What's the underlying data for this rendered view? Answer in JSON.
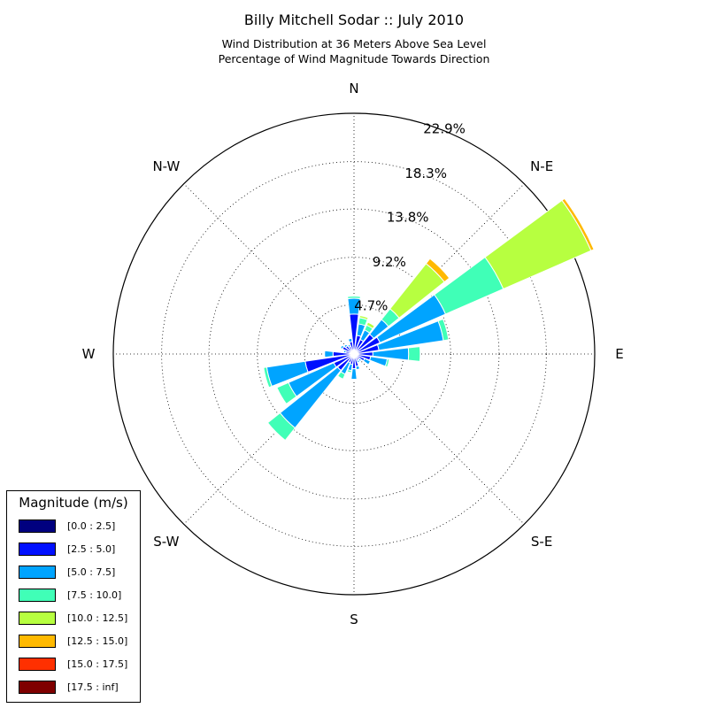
{
  "chart_data": {
    "type": "windrose",
    "title": "Billy Mitchell Sodar :: July 2010",
    "subtitle_lines": [
      "Wind Distribution at 36 Meters Above Sea Level",
      "Percentage of Wind Magnitude Towards Direction"
    ],
    "rmax": 22.9,
    "radial_ticks": [
      4.7,
      9.2,
      13.8,
      18.3,
      22.9
    ],
    "radial_tick_labels": [
      "4.7%",
      "9.2%",
      "13.8%",
      "18.3%",
      "22.9%"
    ],
    "direction_labels": [
      {
        "label": "N",
        "angle": 0
      },
      {
        "label": "N-E",
        "angle": 45
      },
      {
        "label": "E",
        "angle": 90
      },
      {
        "label": "S-E",
        "angle": 135
      },
      {
        "label": "S",
        "angle": 180
      },
      {
        "label": "S-W",
        "angle": 225
      },
      {
        "label": "W",
        "angle": 270
      },
      {
        "label": "N-W",
        "angle": 315
      }
    ],
    "legend_title": "Magnitude (m/s)",
    "bins": [
      {
        "label": "[0.0 : 2.5]",
        "color": "#00007f"
      },
      {
        "label": "[2.5 : 5.0]",
        "color": "#0010ff"
      },
      {
        "label": "[5.0 : 7.5]",
        "color": "#00a4ff"
      },
      {
        "label": "[7.5 : 10.0]",
        "color": "#40ffb7"
      },
      {
        "label": "[10.0 : 12.5]",
        "color": "#b7ff40"
      },
      {
        "label": "[12.5 : 15.0]",
        "color": "#ffb900"
      },
      {
        "label": "[15.0 : 17.5]",
        "color": "#ff3000"
      },
      {
        "label": "[17.5 : inf]",
        "color": "#7f0000"
      }
    ],
    "sector_width_deg": 15,
    "sectors": [
      {
        "direction": 0,
        "values": [
          0.2,
          3.6,
          1.5,
          0.2,
          0,
          0,
          0,
          0
        ]
      },
      {
        "direction": 15,
        "values": [
          0.2,
          1.6,
          1.1,
          0.6,
          0.2,
          0,
          0,
          0
        ]
      },
      {
        "direction": 30,
        "values": [
          0.2,
          1.3,
          1.0,
          0.5,
          0.3,
          0,
          0,
          0
        ]
      },
      {
        "direction": 45,
        "values": [
          0.2,
          2.2,
          1.8,
          1.3,
          5.5,
          0.6,
          0,
          0
        ]
      },
      {
        "direction": 60,
        "values": [
          0.2,
          2.5,
          6.8,
          6.0,
          9.1,
          0.3,
          0,
          0
        ]
      },
      {
        "direction": 75,
        "values": [
          0.2,
          2.2,
          6.2,
          0.5,
          0,
          0,
          0,
          0
        ]
      },
      {
        "direction": 90,
        "values": [
          0.2,
          1.6,
          3.4,
          1.1,
          0,
          0,
          0,
          0
        ]
      },
      {
        "direction": 105,
        "values": [
          0.2,
          1.4,
          1.6,
          0.2,
          0,
          0,
          0,
          0
        ]
      },
      {
        "direction": 120,
        "values": [
          0.2,
          0.9,
          0.6,
          0,
          0,
          0,
          0,
          0
        ]
      },
      {
        "direction": 135,
        "values": [
          0.2,
          0.5,
          0.2,
          0,
          0,
          0,
          0,
          0
        ]
      },
      {
        "direction": 150,
        "values": [
          0.2,
          0.5,
          0.2,
          0,
          0,
          0,
          0,
          0
        ]
      },
      {
        "direction": 165,
        "values": [
          0.2,
          1.0,
          0.3,
          0,
          0,
          0,
          0,
          0
        ]
      },
      {
        "direction": 180,
        "values": [
          0.2,
          1.2,
          1.0,
          0,
          0,
          0,
          0,
          0
        ]
      },
      {
        "direction": 195,
        "values": [
          0.2,
          0.8,
          0.6,
          0.2,
          0,
          0,
          0,
          0
        ]
      },
      {
        "direction": 210,
        "values": [
          0.2,
          0.7,
          1.2,
          0.5,
          0,
          0,
          0,
          0
        ]
      },
      {
        "direction": 225,
        "values": [
          0.2,
          1.8,
          7.0,
          1.5,
          0,
          0,
          0,
          0
        ]
      },
      {
        "direction": 240,
        "values": [
          0.2,
          1.9,
          4.7,
          1.2,
          0,
          0,
          0,
          0
        ]
      },
      {
        "direction": 255,
        "values": [
          0.2,
          4.5,
          3.7,
          0.3,
          0,
          0,
          0,
          0
        ]
      },
      {
        "direction": 270,
        "values": [
          0.2,
          1.8,
          0.8,
          0,
          0,
          0,
          0,
          0
        ]
      },
      {
        "direction": 285,
        "values": [
          0.2,
          0.6,
          0.2,
          0,
          0,
          0,
          0,
          0
        ]
      },
      {
        "direction": 300,
        "values": [
          0.2,
          1.0,
          0.2,
          0,
          0,
          0,
          0,
          0
        ]
      },
      {
        "direction": 315,
        "values": [
          0.2,
          0.8,
          0.2,
          0,
          0,
          0,
          0,
          0
        ]
      },
      {
        "direction": 330,
        "values": [
          0.2,
          0.6,
          0.2,
          0,
          0,
          0,
          0,
          0
        ]
      },
      {
        "direction": 345,
        "values": [
          0.2,
          1.0,
          0.3,
          0,
          0,
          0,
          0,
          0
        ]
      }
    ]
  }
}
